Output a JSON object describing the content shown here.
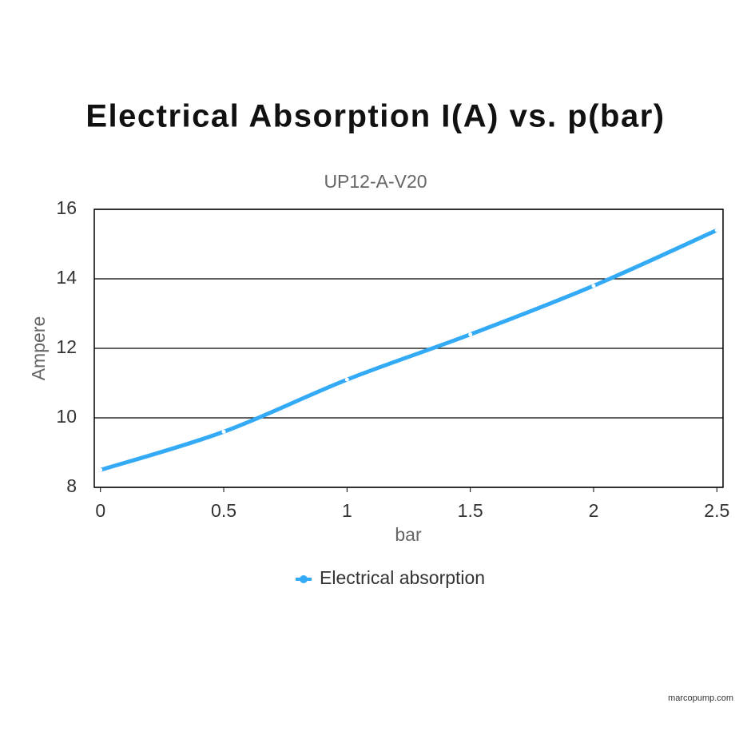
{
  "chart_data": {
    "type": "line",
    "title": "Electrical Absorption I(A) vs. p(bar)",
    "subtitle": "UP12-A-V20",
    "x_label": "bar",
    "y_label": "Ampere",
    "x": [
      0,
      0.5,
      1,
      1.5,
      2,
      2.5
    ],
    "series": [
      {
        "name": "Electrical absorption",
        "color": "#33aaf5",
        "values": [
          8.5,
          9.6,
          11.1,
          12.4,
          13.8,
          15.4
        ]
      }
    ],
    "xlim": [
      -0.025,
      2.525
    ],
    "xticks": [
      0,
      0.5,
      1,
      1.5,
      2,
      2.5
    ],
    "ylim": [
      8,
      16
    ],
    "yticks": [
      8,
      10,
      12,
      14,
      16
    ],
    "grid": true,
    "legend": "bottom",
    "watermark": "marcopump.com"
  }
}
